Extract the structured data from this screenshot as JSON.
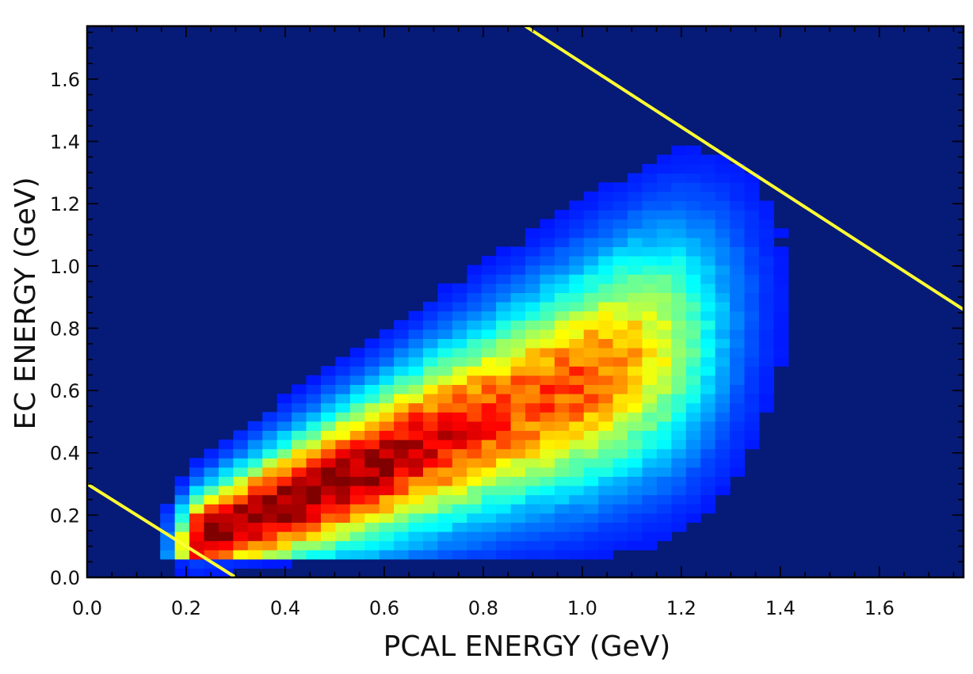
{
  "chart_data": {
    "type": "heatmap",
    "xlabel": "PCAL ENERGY (GeV)",
    "ylabel": "EC ENERGY (GeV)",
    "xlim": [
      0.0,
      1.77
    ],
    "ylim": [
      0.0,
      1.77
    ],
    "xticks": [
      "0.0",
      "0.2",
      "0.4",
      "0.6",
      "0.8",
      "1.0",
      "1.2",
      "1.4",
      "1.6"
    ],
    "yticks": [
      "0.0",
      "0.2",
      "0.4",
      "0.6",
      "0.8",
      "1.0",
      "1.2",
      "1.4",
      "1.6"
    ],
    "grid": false,
    "colormap": "jet",
    "background_color": "#061a78",
    "bins": {
      "nx": 60,
      "ny": 60
    },
    "density_model": {
      "description": "2D histogram of electron energy deposits; peak density along band EC ≈ 0.65·PCAL − 0.02",
      "peak_points": [
        {
          "x": 0.42,
          "y": 0.25,
          "level": 1.0
        },
        {
          "x": 0.55,
          "y": 0.32,
          "level": 0.92
        },
        {
          "x": 0.7,
          "y": 0.46,
          "level": 0.78
        },
        {
          "x": 0.85,
          "y": 0.6,
          "level": 0.72
        },
        {
          "x": 1.05,
          "y": 0.85,
          "level": 0.7
        },
        {
          "x": 1.15,
          "y": 0.95,
          "level": 0.55
        }
      ]
    },
    "cut_lines": [
      {
        "x": [
          0.0,
          0.3
        ],
        "y": [
          0.3,
          0.0
        ],
        "color": "#ffff33"
      },
      {
        "x": [
          0.885,
          1.77
        ],
        "y": [
          1.77,
          0.86
        ],
        "color": "#ffff33"
      }
    ]
  }
}
